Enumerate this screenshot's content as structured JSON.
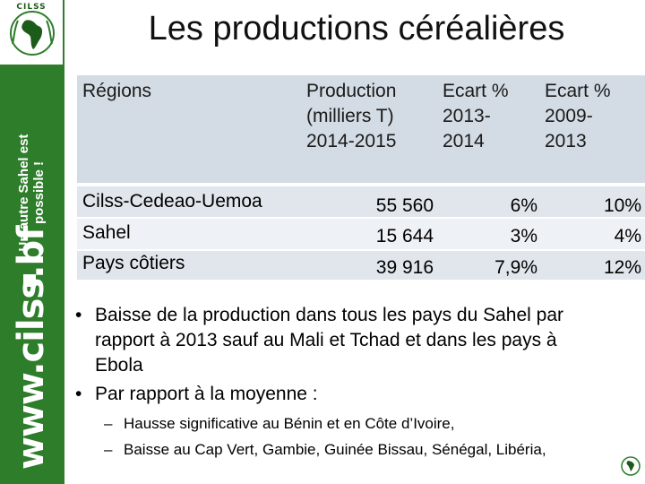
{
  "logo": {
    "text": "CILSS"
  },
  "sidebar": {
    "slogan_line1": "Un autre Sahel est",
    "slogan_line2": "possible !",
    "url": "www.cilss.bf"
  },
  "title": "Les productions céréalières",
  "table": {
    "headers": {
      "regions": "Régions",
      "production_l1": "Production",
      "production_l2": "(milliers  T)",
      "production_l3": "2014-2015",
      "ecart1_l1": "Ecart %",
      "ecart1_l2": "2013-",
      "ecart1_l3": "2014",
      "ecart2_l1": "Ecart %",
      "ecart2_l2": "2009-",
      "ecart2_l3": "2013"
    },
    "rows": [
      {
        "region": "Cilss-Cedeao-Uemoa",
        "production": "55 560",
        "ecart_2013_2014": "6%",
        "ecart_2009_2013": "10%"
      },
      {
        "region": "Sahel",
        "production": "15 644",
        "ecart_2013_2014": "3%",
        "ecart_2009_2013": "4%"
      },
      {
        "region": "Pays côtiers",
        "production": "39 916",
        "ecart_2013_2014": "7,9%",
        "ecart_2009_2013": "12%"
      }
    ]
  },
  "bullets": [
    {
      "marker": "•",
      "lines": [
        "Baisse de la production dans tous les pays du Sahel par",
        "rapport à 2013 sauf au Mali et Tchad et dans les pays à",
        "Ebola"
      ]
    },
    {
      "marker": "•",
      "lines": [
        "Par rapport à la moyenne :"
      ]
    }
  ],
  "sub_bullets": [
    {
      "marker": "–",
      "text": "Hausse significative au Bénin et en Côte d’Ivoire,"
    },
    {
      "marker": "–",
      "text": "Baisse au Cap Vert, Gambie, Guinée Bissau, Sénégal, Libéria,"
    }
  ],
  "colors": {
    "sidebar_green": "#2e7d2a",
    "header_fill": "#d3dbe4",
    "row_fill_dark": "#e1e6ec",
    "row_fill_light": "#eef1f5"
  },
  "icons": {
    "logo": "cilss-africa-logo-icon",
    "corner": "emblem-icon"
  }
}
